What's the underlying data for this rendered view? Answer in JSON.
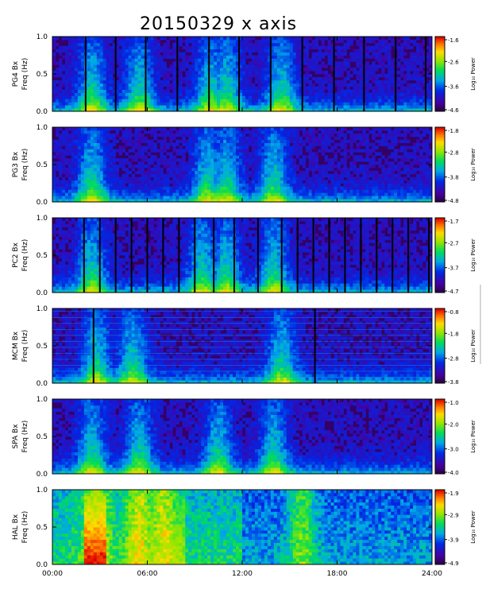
{
  "chart_data": {
    "type": "heatmap",
    "title": "20150329 x axis",
    "xlim": [
      0,
      24
    ],
    "x_ticks": [
      0,
      6,
      12,
      18,
      24
    ],
    "x_tick_labels": [
      "00:00",
      "06:00",
      "12:00",
      "18:00",
      "24:00"
    ],
    "ylim": [
      0,
      1.0
    ],
    "y_ticks": [
      0.0,
      0.5,
      1.0
    ],
    "y_tick_labels": [
      "0.0",
      "0.5",
      "1.0"
    ],
    "colormap": "rainbow",
    "panels": [
      {
        "station": "PG4 Bx",
        "ylabel": "Freq (Hz)",
        "colorbar_label": "Log₁₀ Power",
        "colorbar_ticks": [
          "-1.6",
          "-2.6",
          "-3.6",
          "-4.6"
        ],
        "clim": [
          -4.6,
          -1.6
        ],
        "data_gaps_hours": [
          2.1,
          4.0,
          5.9,
          7.9,
          9.9,
          11.8,
          13.8,
          15.8,
          17.8,
          19.7,
          21.7,
          23.6
        ],
        "activity_peaks_hours": [
          2.5,
          5.5,
          10.0,
          11.0,
          14.5
        ]
      },
      {
        "station": "PG3 Bx",
        "ylabel": "Freq (Hz)",
        "colorbar_label": "Log₁₀ Power",
        "colorbar_ticks": [
          "-1.8",
          "-2.8",
          "-3.8",
          "-4.8"
        ],
        "clim": [
          -4.8,
          -1.8
        ],
        "data_gaps_hours": [],
        "activity_peaks_hours": [
          2.5,
          9.8,
          11.0,
          14.0
        ]
      },
      {
        "station": "PC2 Bx",
        "ylabel": "Freq (Hz)",
        "colorbar_label": "Log₁₀ Power",
        "colorbar_ticks": [
          "-1.7",
          "-2.7",
          "-3.7",
          "-4.7"
        ],
        "clim": [
          -4.7,
          -1.7
        ],
        "data_gaps_hours": [
          2.0,
          3.0,
          4.0,
          5.0,
          6.0,
          7.0,
          8.0,
          9.0,
          10.2,
          11.5,
          13.0,
          14.5,
          15.5,
          16.5,
          17.5,
          18.5,
          19.5,
          20.5,
          21.5,
          22.5,
          23.8
        ],
        "activity_peaks_hours": [
          2.5,
          9.5,
          11.0,
          14.0
        ]
      },
      {
        "station": "MCM Bx",
        "ylabel": "Freq (Hz)",
        "colorbar_label": "Log₁₀ Power",
        "colorbar_ticks": [
          "-0.8",
          "-1.8",
          "-2.8",
          "-3.8"
        ],
        "clim": [
          -3.8,
          -0.8
        ],
        "data_gaps_hours": [
          2.6,
          16.6
        ],
        "activity_peaks_hours": [
          2.8,
          5.1,
          14.5
        ]
      },
      {
        "station": "SPA Bx",
        "ylabel": "Freq (Hz)",
        "colorbar_label": "Log₁₀ Power",
        "colorbar_ticks": [
          "-1.0",
          "-2.0",
          "-3.0",
          "-4.0"
        ],
        "clim": [
          -4.0,
          -1.0
        ],
        "data_gaps_hours": [],
        "activity_peaks_hours": [
          2.5,
          5.5,
          10.5,
          14.0
        ]
      },
      {
        "station": "HAL Bx",
        "ylabel": "Freq (Hz)",
        "colorbar_label": "Log₁₀ Power",
        "colorbar_ticks": [
          "-1.9",
          "-2.9",
          "-3.9",
          "-4.9"
        ],
        "clim": [
          -4.9,
          -1.9
        ],
        "data_gaps_hours": [],
        "activity_peaks_hours": [
          2.8,
          5.5,
          7.0,
          15.8
        ]
      }
    ]
  }
}
